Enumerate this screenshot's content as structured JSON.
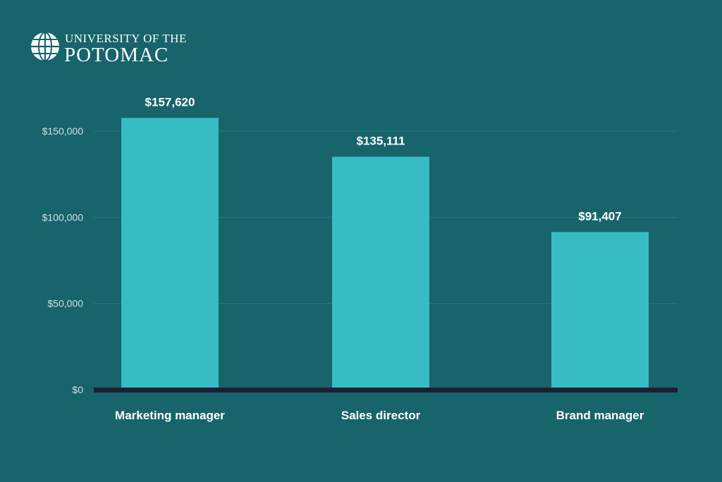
{
  "brand": {
    "line1": "UNIVERSITY OF THE",
    "line2": "POTOMAC",
    "icon": "globe-icon"
  },
  "chart_data": {
    "type": "bar",
    "categories": [
      "Marketing manager",
      "Sales director",
      "Brand manager"
    ],
    "values": [
      157620,
      135111,
      91407
    ],
    "value_labels": [
      "$157,620",
      "$135,111",
      "$91,407"
    ],
    "yticks": [
      0,
      50000,
      100000,
      150000
    ],
    "ytick_labels": [
      "$0",
      "$50,000",
      "$100,000",
      "$150,000"
    ],
    "ylim": [
      0,
      160000
    ],
    "grid": true,
    "legend": "none",
    "title": "",
    "xlabel": "",
    "ylabel": "",
    "colors": {
      "background": "#17646b",
      "bar": "#37bcc4",
      "grid": "#2a7880",
      "baseline": "#1c1f33"
    }
  }
}
